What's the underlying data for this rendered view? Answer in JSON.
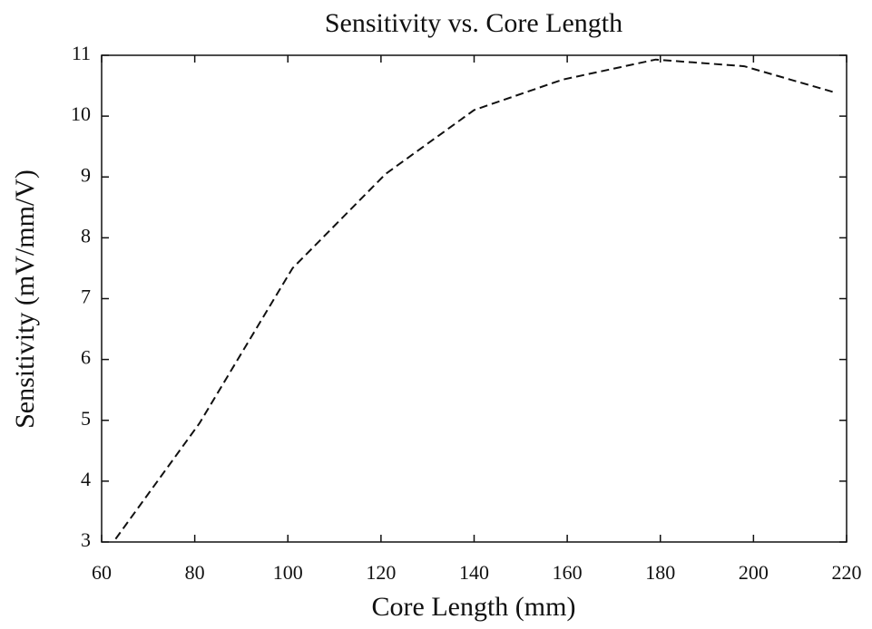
{
  "chart_data": {
    "type": "line",
    "title": "Sensitivity vs. Core Length",
    "x_label": "Core Length (mm)",
    "y_label": "Sensitivity (mV/mm/V)",
    "x": [
      63,
      81,
      101,
      121,
      140,
      159,
      179,
      198,
      217
    ],
    "series": [
      {
        "name": "Sensitivity",
        "color": "#111111",
        "values": [
          3.05,
          4.95,
          7.5,
          9.05,
          10.1,
          10.6,
          10.93,
          10.82,
          10.4
        ]
      }
    ],
    "xlim": [
      60,
      220
    ],
    "xticks": [
      60,
      80,
      100,
      120,
      140,
      160,
      180,
      200,
      220
    ],
    "ylim": [
      3,
      11
    ],
    "yticks": [
      3,
      4,
      5,
      6,
      7,
      8,
      9,
      10,
      11
    ],
    "dashed": true,
    "legend": false
  }
}
